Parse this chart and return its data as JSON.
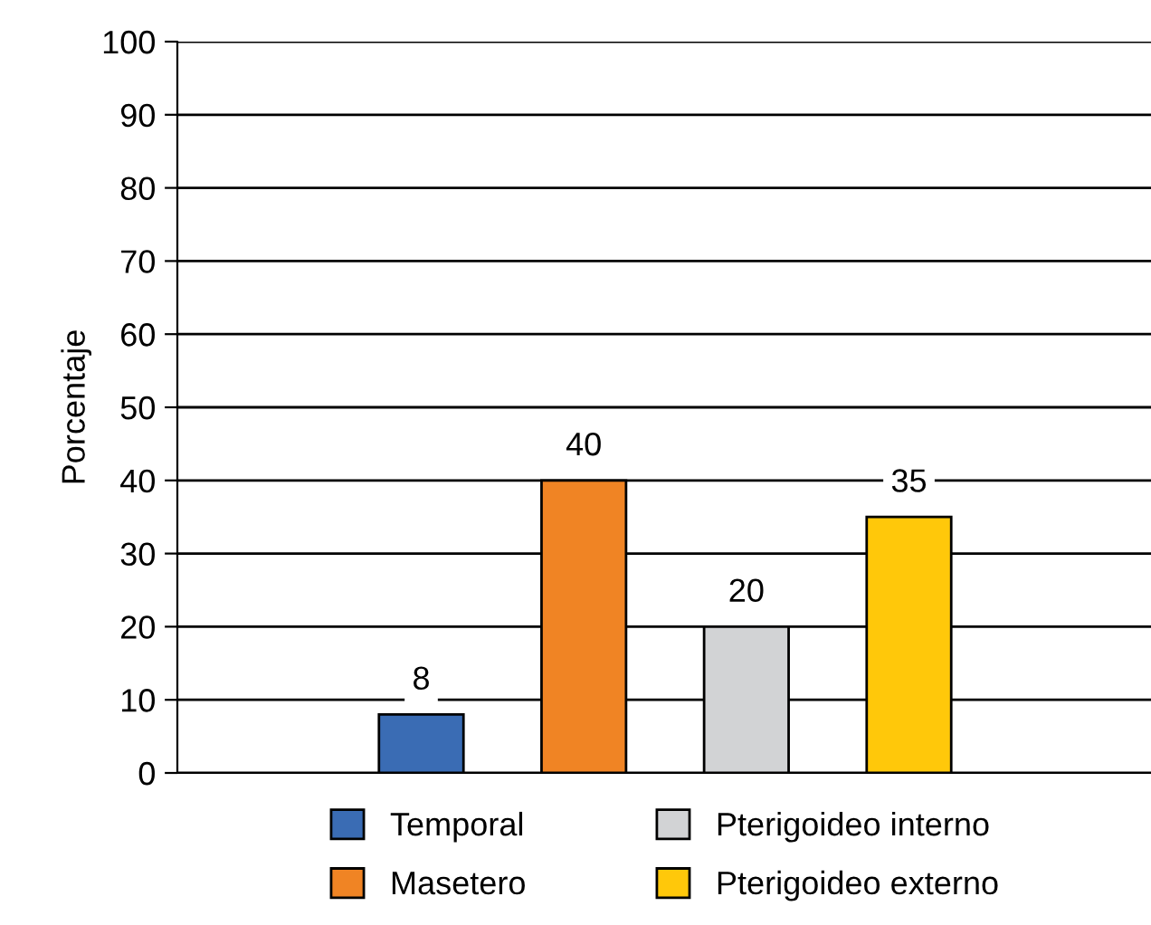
{
  "chart_data": {
    "type": "bar",
    "ylabel": "Porcentaje",
    "categories": [
      null,
      null,
      null,
      null
    ],
    "series": [
      {
        "name": "Temporal",
        "color": "#3a6cb4",
        "values": [
          8,
          null,
          null,
          null
        ]
      },
      {
        "name": "Masetero",
        "color": "#f08424",
        "values": [
          null,
          40,
          null,
          null
        ]
      },
      {
        "name": "Pterigoideo interno",
        "color": "#d2d3d5",
        "values": [
          null,
          null,
          20,
          null
        ]
      },
      {
        "name": "Pterigoideo externo",
        "color": "#ffc80a",
        "values": [
          null,
          null,
          null,
          35
        ]
      }
    ],
    "ylim": [
      0,
      100
    ],
    "yticks": [
      0,
      10,
      20,
      30,
      40,
      50,
      60,
      70,
      80,
      90,
      100
    ],
    "grid": "y",
    "data_labels": true,
    "legend": "bottom"
  }
}
